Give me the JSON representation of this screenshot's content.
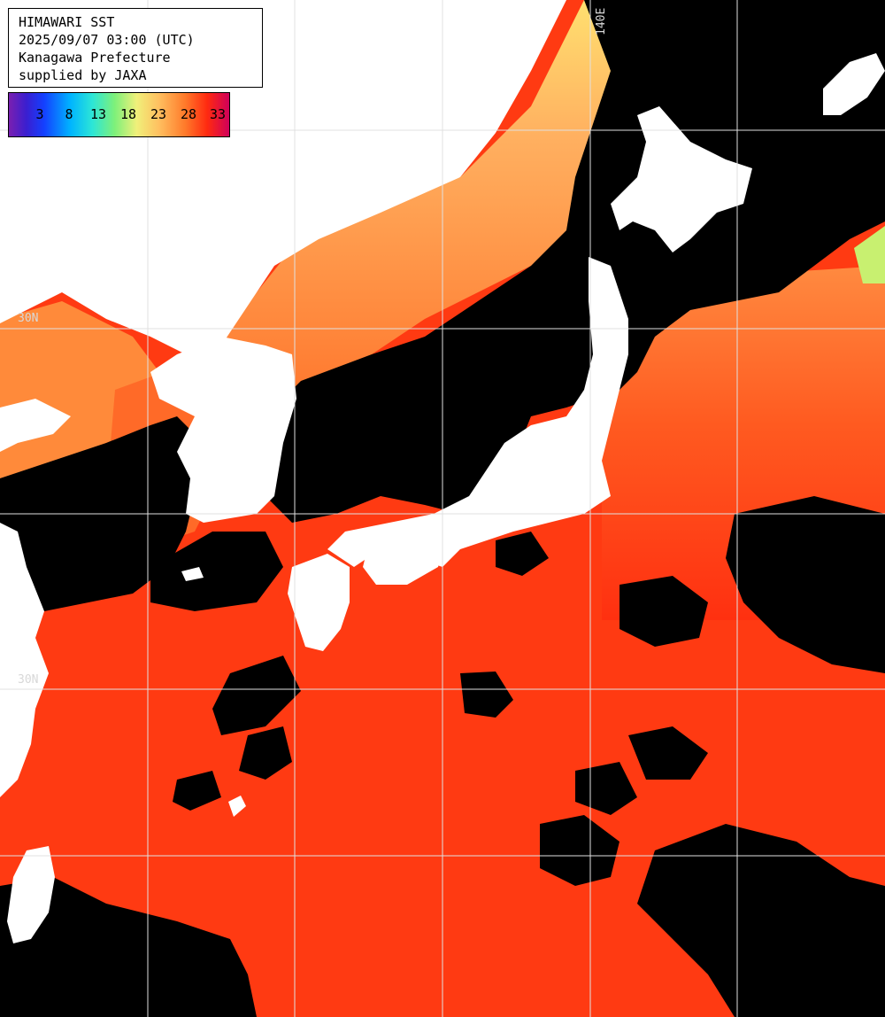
{
  "title_block": {
    "line1": "HIMAWARI SST",
    "line2": "2025/09/07 03:00 (UTC)",
    "line3": "Kanagawa Prefecture",
    "line4": "supplied by JAXA"
  },
  "legend": {
    "ticks": [
      "3",
      "8",
      "13",
      "18",
      "23",
      "28",
      "33"
    ]
  },
  "grid_labels": {
    "lat_top": "30N",
    "lat_bottom": "30N",
    "lon_top": "140E"
  },
  "colors": {
    "land": "#ffffff",
    "cloud": "#000000",
    "grid": "#e0e0e0",
    "sst_warm": "#ff3a10",
    "sst_mid": "#ff7a30",
    "sst_cool": "#f0f07a",
    "sst_cold": "#8ef07a"
  }
}
